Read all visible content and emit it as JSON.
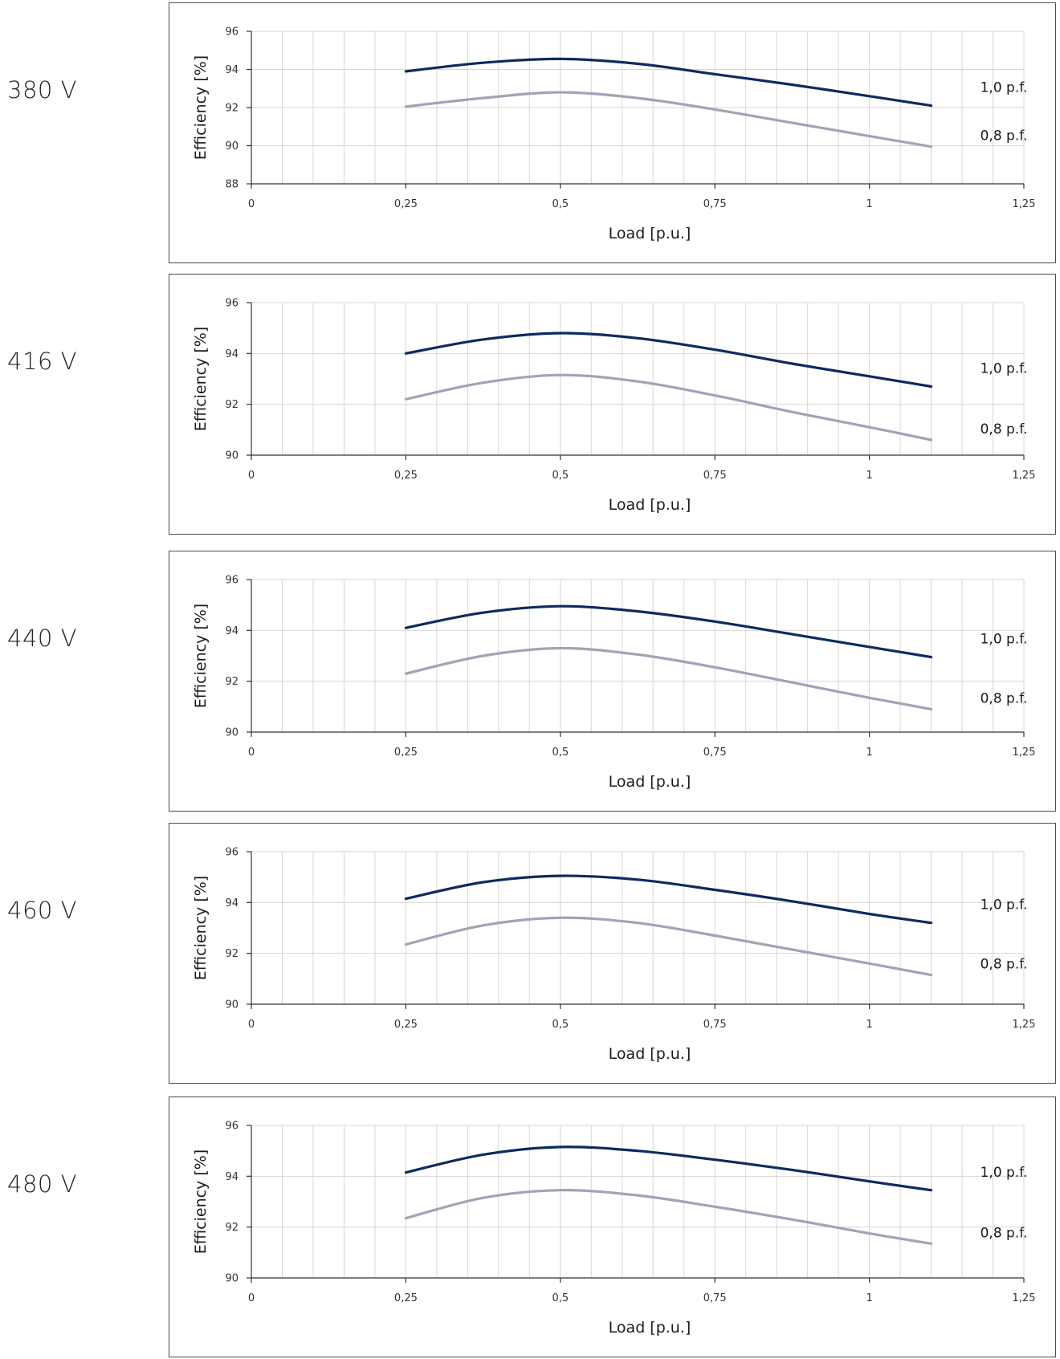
{
  "chart_data": [
    {
      "type": "line",
      "voltage_label": "380 V",
      "xlabel": "Load [p.u.]",
      "ylabel": "Efficiency [%]",
      "xlim": [
        0,
        1.25
      ],
      "ylim": [
        88,
        96
      ],
      "x_ticks": [
        "0",
        "0,25",
        "0,5",
        "0,75",
        "1",
        "1,25"
      ],
      "y_ticks": [
        "88",
        "90",
        "92",
        "94",
        "96"
      ],
      "x_tick_values": [
        0,
        0.25,
        0.5,
        0.75,
        1,
        1.25
      ],
      "y_tick_values": [
        88,
        90,
        92,
        94,
        96
      ],
      "grid": true,
      "series": [
        {
          "name": "1,0 p.f.",
          "color": "#0d2b5e",
          "x": [
            0.25,
            0.375,
            0.5,
            0.625,
            0.75,
            0.875,
            1.0,
            1.1
          ],
          "y": [
            93.9,
            94.35,
            94.55,
            94.3,
            93.75,
            93.2,
            92.6,
            92.1
          ]
        },
        {
          "name": "0,8 p.f.",
          "color": "#a3a3b5",
          "x": [
            0.25,
            0.375,
            0.5,
            0.625,
            0.75,
            0.875,
            1.0,
            1.1
          ],
          "y": [
            92.05,
            92.5,
            92.8,
            92.5,
            91.9,
            91.2,
            90.5,
            89.95
          ]
        }
      ]
    },
    {
      "type": "line",
      "voltage_label": "416 V",
      "xlabel": "Load [p.u.]",
      "ylabel": "Efficiency [%]",
      "xlim": [
        0,
        1.25
      ],
      "ylim": [
        90,
        96
      ],
      "x_ticks": [
        "0",
        "0,25",
        "0,5",
        "0,75",
        "1",
        "1,25"
      ],
      "y_ticks": [
        "90",
        "92",
        "94",
        "96"
      ],
      "x_tick_values": [
        0,
        0.25,
        0.5,
        0.75,
        1,
        1.25
      ],
      "y_tick_values": [
        90,
        92,
        94,
        96
      ],
      "grid": true,
      "series": [
        {
          "name": "1,0 p.f.",
          "color": "#0d2b5e",
          "x": [
            0.25,
            0.375,
            0.5,
            0.625,
            0.75,
            0.875,
            1.0,
            1.1
          ],
          "y": [
            94.0,
            94.55,
            94.8,
            94.6,
            94.15,
            93.6,
            93.1,
            92.7
          ]
        },
        {
          "name": "0,8 p.f.",
          "color": "#a3a3b5",
          "x": [
            0.25,
            0.375,
            0.5,
            0.625,
            0.75,
            0.875,
            1.0,
            1.1
          ],
          "y": [
            92.2,
            92.85,
            93.15,
            92.9,
            92.35,
            91.7,
            91.1,
            90.6
          ]
        }
      ]
    },
    {
      "type": "line",
      "voltage_label": "440 V",
      "xlabel": "Load [p.u.]",
      "ylabel": "Efficiency [%]",
      "xlim": [
        0,
        1.25
      ],
      "ylim": [
        90,
        96
      ],
      "x_ticks": [
        "0",
        "0,25",
        "0,5",
        "0,75",
        "1",
        "1,25"
      ],
      "y_ticks": [
        "90",
        "92",
        "94",
        "96"
      ],
      "x_tick_values": [
        0,
        0.25,
        0.5,
        0.75,
        1,
        1.25
      ],
      "y_tick_values": [
        90,
        92,
        94,
        96
      ],
      "grid": true,
      "series": [
        {
          "name": "1,0 p.f.",
          "color": "#0d2b5e",
          "x": [
            0.25,
            0.375,
            0.5,
            0.625,
            0.75,
            0.875,
            1.0,
            1.1
          ],
          "y": [
            94.1,
            94.7,
            94.95,
            94.75,
            94.35,
            93.85,
            93.35,
            92.95
          ]
        },
        {
          "name": "0,8 p.f.",
          "color": "#a3a3b5",
          "x": [
            0.25,
            0.375,
            0.5,
            0.625,
            0.75,
            0.875,
            1.0,
            1.1
          ],
          "y": [
            92.3,
            93.0,
            93.3,
            93.05,
            92.55,
            91.95,
            91.35,
            90.9
          ]
        }
      ]
    },
    {
      "type": "line",
      "voltage_label": "460 V",
      "xlabel": "Load [p.u.]",
      "ylabel": "Efficiency [%]",
      "xlim": [
        0,
        1.25
      ],
      "ylim": [
        90,
        96
      ],
      "x_ticks": [
        "0",
        "0,25",
        "0,5",
        "0,75",
        "1",
        "1,25"
      ],
      "y_ticks": [
        "90",
        "92",
        "94",
        "96"
      ],
      "x_tick_values": [
        0,
        0.25,
        0.5,
        0.75,
        1,
        1.25
      ],
      "y_tick_values": [
        90,
        92,
        94,
        96
      ],
      "grid": true,
      "series": [
        {
          "name": "1,0 p.f.",
          "color": "#0d2b5e",
          "x": [
            0.25,
            0.375,
            0.5,
            0.625,
            0.75,
            0.875,
            1.0,
            1.1
          ],
          "y": [
            94.15,
            94.8,
            95.05,
            94.9,
            94.5,
            94.05,
            93.55,
            93.2
          ]
        },
        {
          "name": "0,8 p.f.",
          "color": "#a3a3b5",
          "x": [
            0.25,
            0.375,
            0.5,
            0.625,
            0.75,
            0.875,
            1.0,
            1.1
          ],
          "y": [
            92.35,
            93.1,
            93.4,
            93.2,
            92.7,
            92.15,
            91.6,
            91.15
          ]
        }
      ]
    },
    {
      "type": "line",
      "voltage_label": "480 V",
      "xlabel": "Load [p.u.]",
      "ylabel": "Efficiency [%]",
      "xlim": [
        0,
        1.25
      ],
      "ylim": [
        90,
        96
      ],
      "x_ticks": [
        "0",
        "0,25",
        "0,5",
        "0,75",
        "1",
        "1,25"
      ],
      "y_ticks": [
        "90",
        "92",
        "94",
        "96"
      ],
      "x_tick_values": [
        0,
        0.25,
        0.5,
        0.75,
        1,
        1.25
      ],
      "y_tick_values": [
        90,
        92,
        94,
        96
      ],
      "grid": true,
      "series": [
        {
          "name": "1,0 p.f.",
          "color": "#0d2b5e",
          "x": [
            0.25,
            0.375,
            0.5,
            0.625,
            0.75,
            0.875,
            1.0,
            1.1
          ],
          "y": [
            94.15,
            94.85,
            95.15,
            95.0,
            94.65,
            94.25,
            93.8,
            93.45
          ]
        },
        {
          "name": "0,8 p.f.",
          "color": "#a3a3b5",
          "x": [
            0.25,
            0.375,
            0.5,
            0.625,
            0.75,
            0.875,
            1.0,
            1.1
          ],
          "y": [
            92.35,
            93.15,
            93.45,
            93.25,
            92.8,
            92.3,
            91.75,
            91.35
          ]
        }
      ]
    }
  ]
}
